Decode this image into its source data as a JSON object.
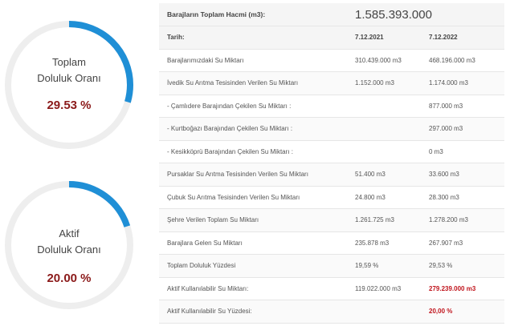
{
  "gauges": [
    {
      "label_line1": "Toplam",
      "label_line2": "Doluluk Oranı",
      "value": "29.53 %",
      "percent": 29.53
    },
    {
      "label_line1": "Aktif",
      "label_line2": "Doluluk Oranı",
      "value": "20.00 %",
      "percent": 20.0
    }
  ],
  "colors": {
    "accent": "#1f8fd6",
    "track": "#eeeeee",
    "value_red": "#8b1a1a",
    "highlight_red": "#c0141c"
  },
  "table": {
    "total_label": "Barajların Toplam Hacmi (m3):",
    "total_value": "1.585.393.000",
    "date_header": "Tarih:",
    "date_1": "7.12.2021",
    "date_2": "7.12.2022",
    "rows": [
      {
        "label": "Barajlarımızdaki Su Miktarı",
        "v1": "310.439.000 m3",
        "v2": "468.196.000 m3"
      },
      {
        "label": "İvedik Su Arıtma Tesisinden Verilen Su Miktarı",
        "v1": "1.152.000 m3",
        "v2": "1.174.000 m3"
      },
      {
        "label": "- Çamlıdere Barajından Çekilen Su Miktarı :",
        "v1": "",
        "v2": "877.000 m3"
      },
      {
        "label": "- Kurtboğazı Barajından Çekilen Su Miktarı :",
        "v1": "",
        "v2": "297.000 m3"
      },
      {
        "label": "- Kesikköprü Barajından Çekilen Su Miktarı :",
        "v1": "",
        "v2": "0 m3"
      },
      {
        "label": "Pursaklar Su Arıtma Tesisinden Verilen Su Miktarı",
        "v1": "51.400 m3",
        "v2": "33.600 m3"
      },
      {
        "label": "Çubuk Su Arıtma Tesisinden Verilen Su Miktarı",
        "v1": "24.800 m3",
        "v2": "28.300 m3"
      },
      {
        "label": "Şehre Verilen Toplam Su Miktarı",
        "v1": "1.261.725 m3",
        "v2": "1.278.200 m3"
      },
      {
        "label": "Barajlara Gelen Su Miktarı",
        "v1": "235.878 m3",
        "v2": "267.907 m3"
      },
      {
        "label": "Toplam Doluluk Yüzdesi",
        "v1": "19,59 %",
        "v2": "29,53 %"
      },
      {
        "label": "Aktif Kullanılabilir Su Miktarı:",
        "v1": "119.022.000 m3",
        "v2": "279.239.000 m3"
      },
      {
        "label": "Aktif Kullanılabilir Su Yüzdesi:",
        "v1": "",
        "v2": "20,00 %"
      }
    ]
  }
}
